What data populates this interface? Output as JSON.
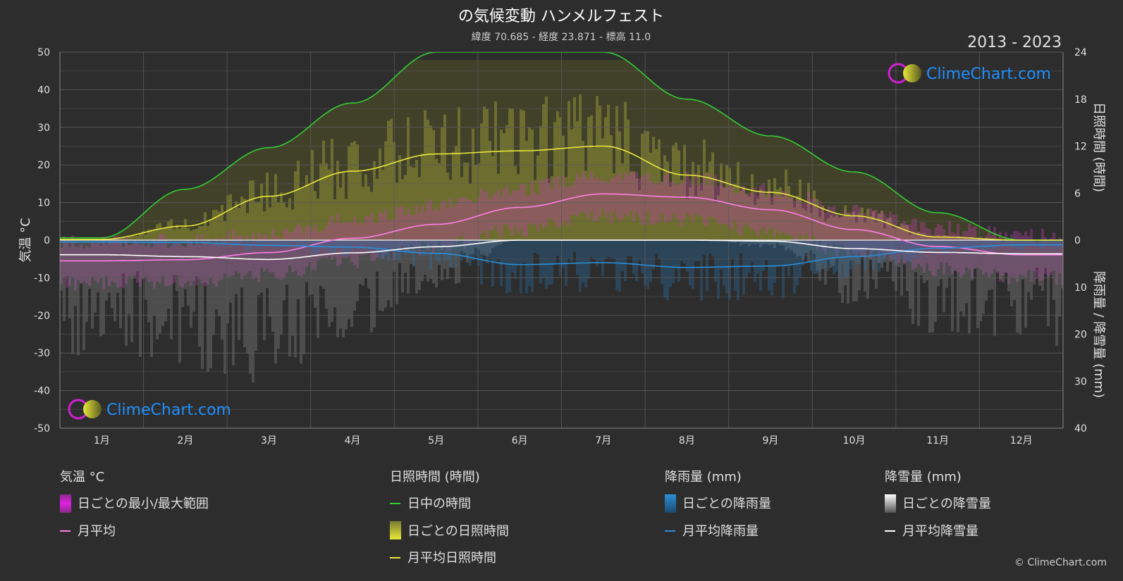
{
  "title": "の気候変動 ハンメルフェスト",
  "subtitle": "緯度 70.685 - 経度 23.871 - 標高 11.0",
  "period": "2013 - 2023",
  "watermark": "ClimeChart.com",
  "copyright": "© ClimeChart.com",
  "chart_data": {
    "type": "line",
    "categories": [
      "1月",
      "2月",
      "3月",
      "4月",
      "5月",
      "6月",
      "7月",
      "8月",
      "9月",
      "10月",
      "11月",
      "12月"
    ],
    "axes": {
      "left": {
        "label": "気温 °C",
        "range": [
          -50,
          50
        ],
        "ticks": [
          "50",
          "40",
          "30",
          "20",
          "10",
          "0",
          "-10",
          "-20",
          "-30",
          "-40",
          "-50"
        ]
      },
      "right_top": {
        "label": "日照時間 (時間)",
        "range": [
          0,
          24
        ],
        "ticks": [
          "24",
          "18",
          "12",
          "6",
          "0"
        ]
      },
      "right_bottom": {
        "label": "降雨量 / 降雪量 (mm)",
        "range": [
          0,
          40
        ],
        "ticks": [
          "10",
          "20",
          "30",
          "40"
        ]
      }
    },
    "series": [
      {
        "name": "日中の時間",
        "axis": "right_top",
        "color": "#32cd32",
        "values": [
          0.3,
          6.5,
          11.8,
          17.5,
          24,
          24,
          24,
          18,
          13.3,
          8.7,
          3.5,
          0
        ]
      },
      {
        "name": "月平均日照時間",
        "axis": "right_top",
        "color": "#e8e83a",
        "values": [
          0.1,
          1.8,
          5.6,
          8.8,
          11,
          11.4,
          12,
          8.3,
          6.1,
          3.1,
          0.4,
          0
        ]
      },
      {
        "name": "月平均",
        "axis": "left",
        "color": "#ff7ee8",
        "values": [
          -5.5,
          -5.2,
          -3.3,
          0.5,
          4.2,
          8.7,
          12.3,
          11.4,
          8.1,
          2.8,
          -1.7,
          -3.9
        ]
      },
      {
        "name": "月平均降雨量",
        "axis": "right_bottom",
        "color": "#2b8fd8",
        "values": [
          0.4,
          0.5,
          1.1,
          1.5,
          2.8,
          5.2,
          4.8,
          5.8,
          5.5,
          3.5,
          1.7,
          1.0
        ]
      },
      {
        "name": "月平均降雪量",
        "axis": "right_bottom",
        "color": "#ffffff",
        "values": [
          3.1,
          3.5,
          4.1,
          2.7,
          1.4,
          0.0,
          0.0,
          0.0,
          0.2,
          1.8,
          2.6,
          2.9
        ]
      }
    ]
  },
  "legend": {
    "temp": {
      "head": "気温 °C",
      "items": [
        "日ごとの最小/最大範囲",
        "月平均"
      ]
    },
    "sun": {
      "head": "日照時間 (時間)",
      "items": [
        "日中の時間",
        "日ごとの日照時間",
        "月平均日照時間"
      ]
    },
    "rain": {
      "head": "降雨量 (mm)",
      "items": [
        "日ごとの降雨量",
        "月平均降雨量"
      ]
    },
    "snow": {
      "head": "降雪量 (mm)",
      "items": [
        "日ごとの降雪量",
        "月平均降雪量"
      ]
    }
  },
  "colors": {
    "background": "#2d2d2d",
    "grid": "#5a5a5a",
    "daylight": "#32cd32",
    "sunshine": "#e8e83a",
    "temp_range": "#e020e0",
    "temp_avg": "#ff7ee8",
    "rain": "#2b8fd8",
    "snow": "#ffffff",
    "brand": "#1e90ff"
  }
}
